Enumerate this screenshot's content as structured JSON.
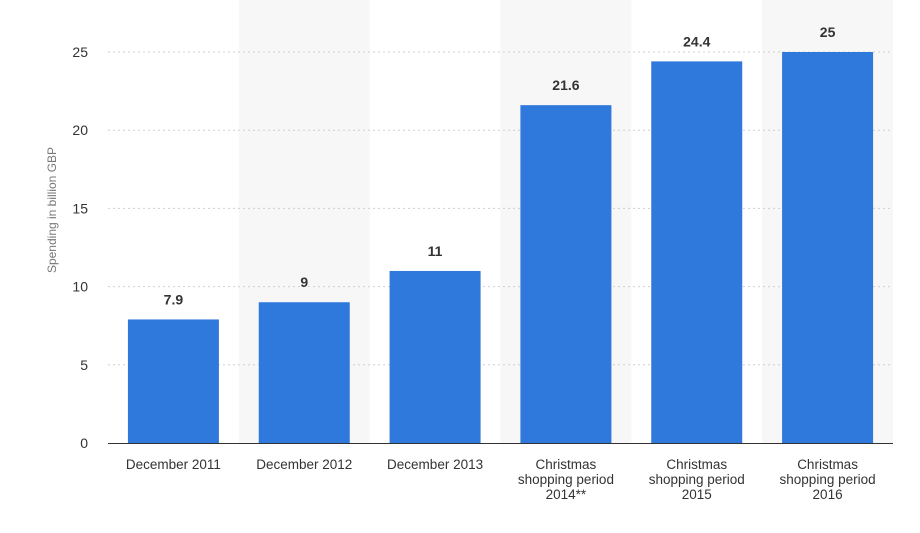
{
  "chart_data": {
    "type": "bar",
    "categories": [
      [
        "December 2011"
      ],
      [
        "December 2012"
      ],
      [
        "December 2013"
      ],
      [
        "Christmas",
        "shopping period",
        "2014**"
      ],
      [
        "Christmas",
        "shopping period",
        "2015"
      ],
      [
        "Christmas",
        "shopping period",
        "2016"
      ]
    ],
    "values": [
      7.9,
      9,
      11,
      21.6,
      24.4,
      25
    ],
    "value_labels": [
      "7.9",
      "9",
      "11",
      "21.6",
      "24.4",
      "25"
    ],
    "ylabel": "Spending in billion GBP",
    "ylim": [
      0,
      25
    ],
    "yticks": [
      0,
      5,
      10,
      15,
      20,
      25
    ],
    "grid": true,
    "bar_color": "#2f78dc",
    "band_color": "#f7f7f7",
    "grid_color": "#cfcfcf"
  }
}
